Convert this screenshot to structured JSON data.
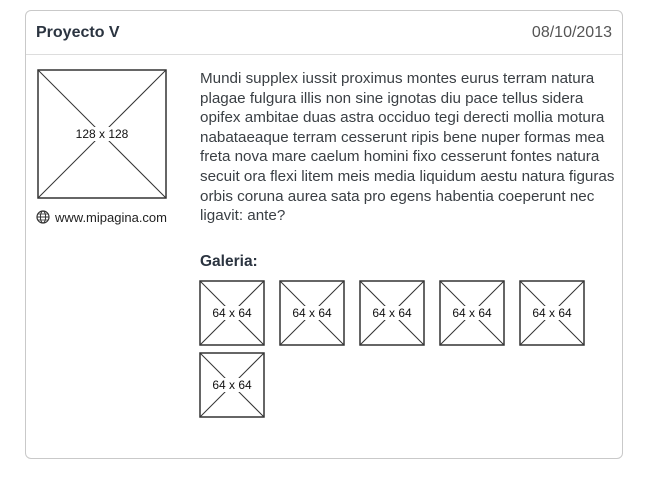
{
  "project": {
    "title": "Proyecto V",
    "date": "08/10/2013"
  },
  "thumbnail": {
    "label": "128 x 128"
  },
  "website": {
    "icon": "globe-icon",
    "url": "www.mipagina.com"
  },
  "description": "Mundi supplex iussit proximus montes eurus terram natura plagae fulgura illis non sine ignotas diu pace tellus sidera opifex ambitae duas astra occiduo tegi derecti mollia motura nabataeaque terram cesserunt ripis bene nuper formas mea freta nova mare caelum homini fixo cesserunt fontes natura secuit ora flexi litem meis media liquidum aestu natura figuras orbis coruna aurea sata pro egens habentia coeperunt nec ligavit: ante?",
  "gallery": {
    "heading": "Galeria:",
    "items": [
      {
        "label": "64 x 64"
      },
      {
        "label": "64 x 64"
      },
      {
        "label": "64 x 64"
      },
      {
        "label": "64 x 64"
      },
      {
        "label": "64 x 64"
      },
      {
        "label": "64 x 64"
      }
    ]
  },
  "colors": {
    "border": "#c9c9c9",
    "title": "#2b3440",
    "text": "#3a3f44"
  }
}
